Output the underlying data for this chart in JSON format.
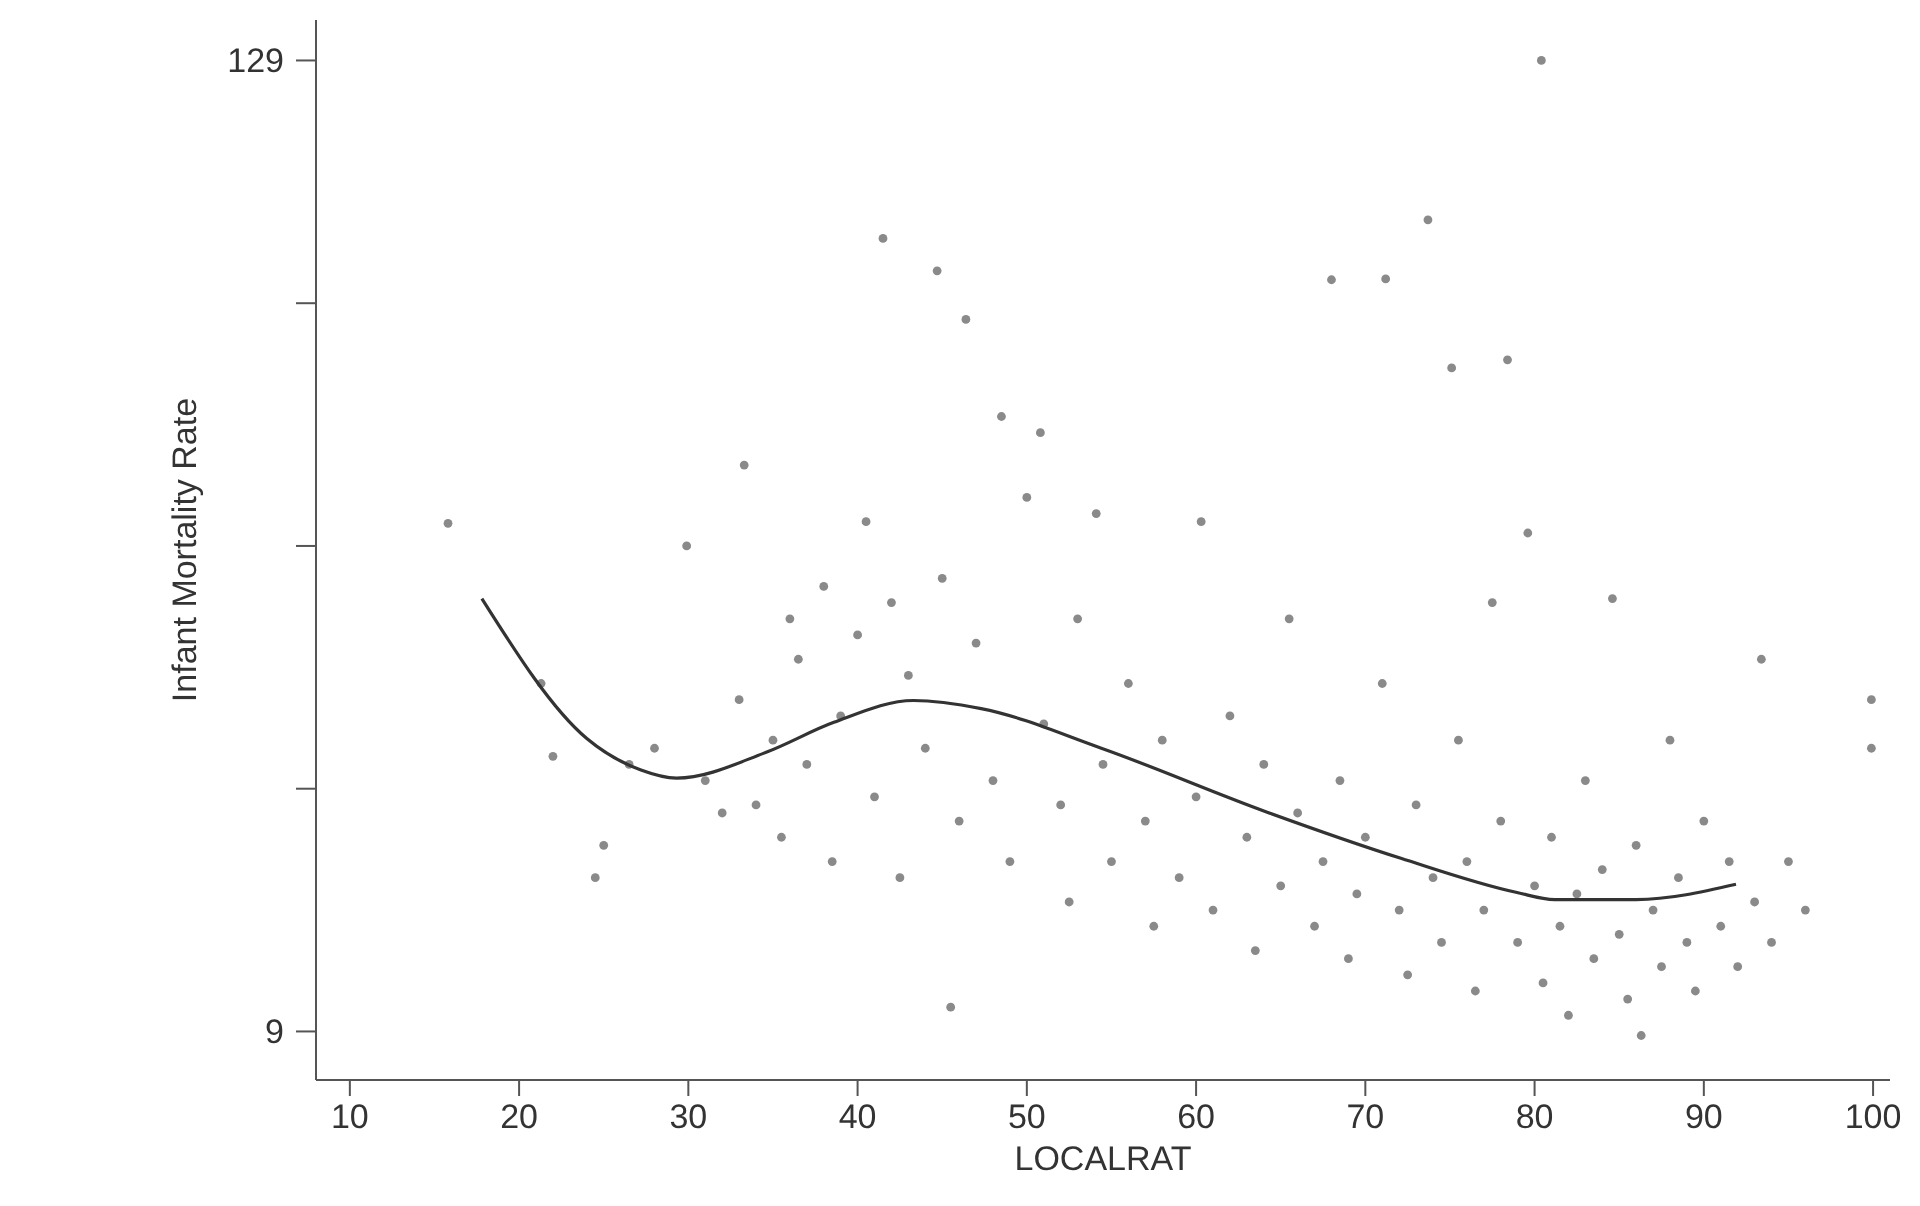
{
  "chart_data": {
    "type": "scatter",
    "xlabel": "LOCALRAT",
    "ylabel": "Infant Mortality Rate",
    "xlim": [
      8,
      101
    ],
    "xticks": [
      10,
      20,
      30,
      40,
      50,
      60,
      70,
      80,
      90,
      100
    ],
    "ylim": [
      3,
      134
    ],
    "yticks": [
      9,
      {
        "value": 39,
        "label": null
      },
      {
        "value": 69,
        "label": null
      },
      {
        "value": 99,
        "label": null
      },
      129
    ],
    "marker": "circle",
    "grid": false,
    "series": [
      {
        "color": "#8a8a8a",
        "x": [
          15.8,
          21.3,
          22,
          24.5,
          25,
          26.5,
          28,
          29.9,
          31,
          32,
          33.3,
          33,
          34,
          35,
          35.5,
          36,
          36.5,
          37,
          38,
          38.5,
          39,
          40,
          40.5,
          41,
          41.5,
          42,
          42.5,
          43,
          44,
          44.7,
          45,
          45.5,
          46,
          46.4,
          47,
          48,
          48.5,
          49,
          50,
          50.8,
          51,
          52,
          52.5,
          53,
          54.1,
          54.5,
          55,
          56,
          57,
          57.5,
          58,
          59,
          60,
          60.3,
          61,
          62,
          63,
          63.5,
          64,
          65,
          65.5,
          66,
          67,
          67.5,
          68,
          68.5,
          69,
          69.5,
          70,
          71,
          71.2,
          72,
          72.5,
          73,
          73.7,
          74,
          74.5,
          75.1,
          75.5,
          76,
          76.5,
          77,
          77.5,
          78,
          78.4,
          79,
          79.6,
          80,
          80.4,
          80.5,
          81,
          81.5,
          82,
          82.5,
          83,
          83.5,
          84,
          84.6,
          85,
          85.5,
          86,
          86.3,
          87,
          87.5,
          88,
          88.5,
          89,
          89.5,
          90,
          91,
          91.5,
          92,
          93,
          93.4,
          94,
          95,
          96,
          99.9,
          99.9
        ],
        "values": [
          71.8,
          52,
          43,
          28,
          32,
          42,
          44,
          69,
          40,
          36,
          79,
          50,
          37,
          45,
          33,
          60,
          55,
          42,
          64,
          30,
          48,
          58,
          72,
          38,
          107,
          62,
          28,
          53,
          44,
          103,
          65,
          12,
          35,
          97,
          57,
          40,
          85,
          30,
          75,
          83,
          47,
          37,
          25,
          60,
          73,
          42,
          30,
          52,
          35,
          22,
          45,
          28,
          38,
          72,
          24,
          48,
          33,
          19,
          42,
          27,
          60,
          36,
          22,
          30,
          101.9,
          40,
          18,
          26,
          33,
          52,
          102,
          24,
          16,
          37,
          109.3,
          28,
          20,
          91,
          45,
          30,
          14,
          24,
          62,
          35,
          92,
          20,
          70.6,
          27,
          129,
          15,
          33,
          22,
          11,
          26,
          40,
          18,
          29,
          62.5,
          21,
          13,
          32,
          8.5,
          24,
          17,
          45,
          28,
          20,
          14,
          35,
          22,
          30,
          17,
          25,
          55,
          20,
          30,
          24,
          44,
          50
        ]
      },
      {
        "type": "line",
        "color": "#333333",
        "line_style": "solid",
        "marker": "none",
        "x": [
          17.8,
          24.0,
          27.2,
          29.3,
          34.6,
          38.6,
          43.3,
          47.3,
          54.4,
          64.2,
          72.1,
          78.9,
          81.2,
          86.0,
          91.9
        ],
        "values": [
          62.5,
          45.2,
          41.3,
          40.3,
          43.5,
          47.2,
          49.9,
          48.9,
          44.0,
          36.1,
          30.4,
          26.2,
          25.3,
          25.3,
          27.2
        ]
      }
    ]
  }
}
